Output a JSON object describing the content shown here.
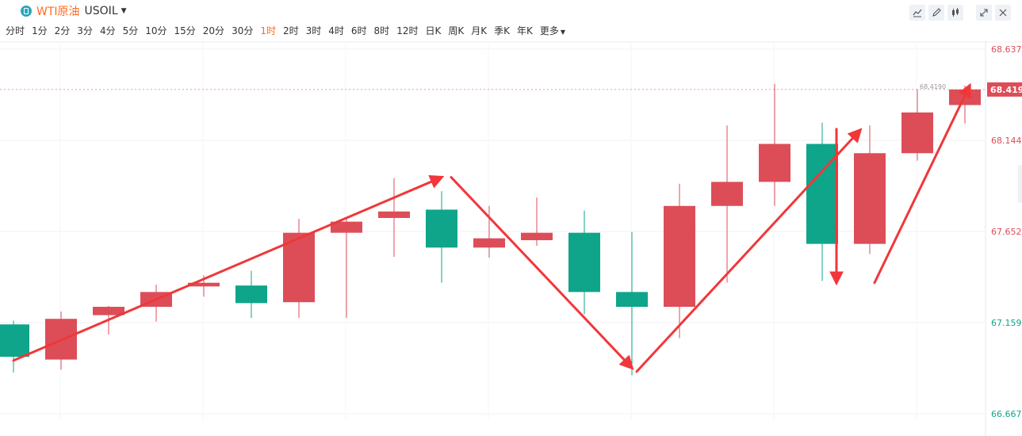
{
  "header": {
    "symbol_name": "WTI原油",
    "symbol_code": "USOIL",
    "periods": [
      "分时",
      "1分",
      "2分",
      "3分",
      "4分",
      "5分",
      "10分",
      "15分",
      "20分",
      "30分",
      "1时",
      "2时",
      "3时",
      "4时",
      "6时",
      "8时",
      "12时",
      "日K",
      "周K",
      "月K",
      "季K",
      "年K",
      "更多"
    ],
    "active_period": "1时",
    "tools": [
      "line-tool-icon",
      "draw-pen-icon",
      "indicator-icon",
      "expand-icon",
      "close-icon"
    ]
  },
  "chart_data": {
    "type": "candlestick",
    "price_axis_labels": [
      "68.6370",
      "68.1445",
      "67.6520",
      "67.1595",
      "66.6670"
    ],
    "ylim": [
      66.667,
      68.637
    ],
    "current_price": "68.4190",
    "current_price_small_label": "68.4190",
    "up_color": "#dc4d58",
    "down_color": "#0ea58a",
    "candles": [
      {
        "open": 67.15,
        "close": 66.975,
        "high": 67.17,
        "low": 66.89
      },
      {
        "open": 66.96,
        "close": 67.18,
        "high": 67.22,
        "low": 66.905
      },
      {
        "open": 67.2,
        "close": 67.245,
        "high": 67.25,
        "low": 67.095
      },
      {
        "open": 67.245,
        "close": 67.325,
        "high": 67.365,
        "low": 67.165
      },
      {
        "open": 67.355,
        "close": 67.375,
        "high": 67.415,
        "low": 67.3
      },
      {
        "open": 67.36,
        "close": 67.265,
        "high": 67.44,
        "low": 67.185
      },
      {
        "open": 67.27,
        "close": 67.645,
        "high": 67.72,
        "low": 67.185
      },
      {
        "open": 67.645,
        "close": 67.705,
        "high": 67.73,
        "low": 67.185
      },
      {
        "open": 67.725,
        "close": 67.76,
        "high": 67.94,
        "low": 67.515
      },
      {
        "open": 67.77,
        "close": 67.565,
        "high": 67.87,
        "low": 67.375
      },
      {
        "open": 67.565,
        "close": 67.615,
        "high": 67.79,
        "low": 67.51
      },
      {
        "open": 67.605,
        "close": 67.645,
        "high": 67.835,
        "low": 67.575
      },
      {
        "open": 67.645,
        "close": 67.325,
        "high": 67.765,
        "low": 67.205
      },
      {
        "open": 67.325,
        "close": 67.245,
        "high": 67.65,
        "low": 66.875
      },
      {
        "open": 67.245,
        "close": 67.79,
        "high": 67.91,
        "low": 67.075
      },
      {
        "open": 67.79,
        "close": 67.92,
        "high": 68.225,
        "low": 67.375
      },
      {
        "open": 67.92,
        "close": 68.125,
        "high": 68.45,
        "low": 67.79
      },
      {
        "open": 68.125,
        "close": 67.585,
        "high": 68.24,
        "low": 67.385
      },
      {
        "open": 67.585,
        "close": 68.075,
        "high": 68.225,
        "low": 67.53
      },
      {
        "open": 68.075,
        "close": 68.295,
        "high": 68.42,
        "low": 68.035
      },
      {
        "open": 68.335,
        "close": 68.419,
        "high": 68.44,
        "low": 68.235
      }
    ],
    "annotation_arrows": [
      {
        "from": [
          0,
          66.955
        ],
        "to": [
          9.0,
          67.945
        ]
      },
      {
        "from": [
          9.2,
          67.945
        ],
        "to": [
          13.0,
          66.915
        ]
      },
      {
        "from": [
          13.1,
          66.895
        ],
        "to": [
          17.8,
          68.2
        ]
      },
      {
        "from": [
          17.3,
          68.205
        ],
        "to": [
          17.3,
          67.375
        ]
      },
      {
        "from": [
          18.1,
          67.375
        ],
        "to": [
          20.1,
          68.44
        ]
      }
    ]
  }
}
